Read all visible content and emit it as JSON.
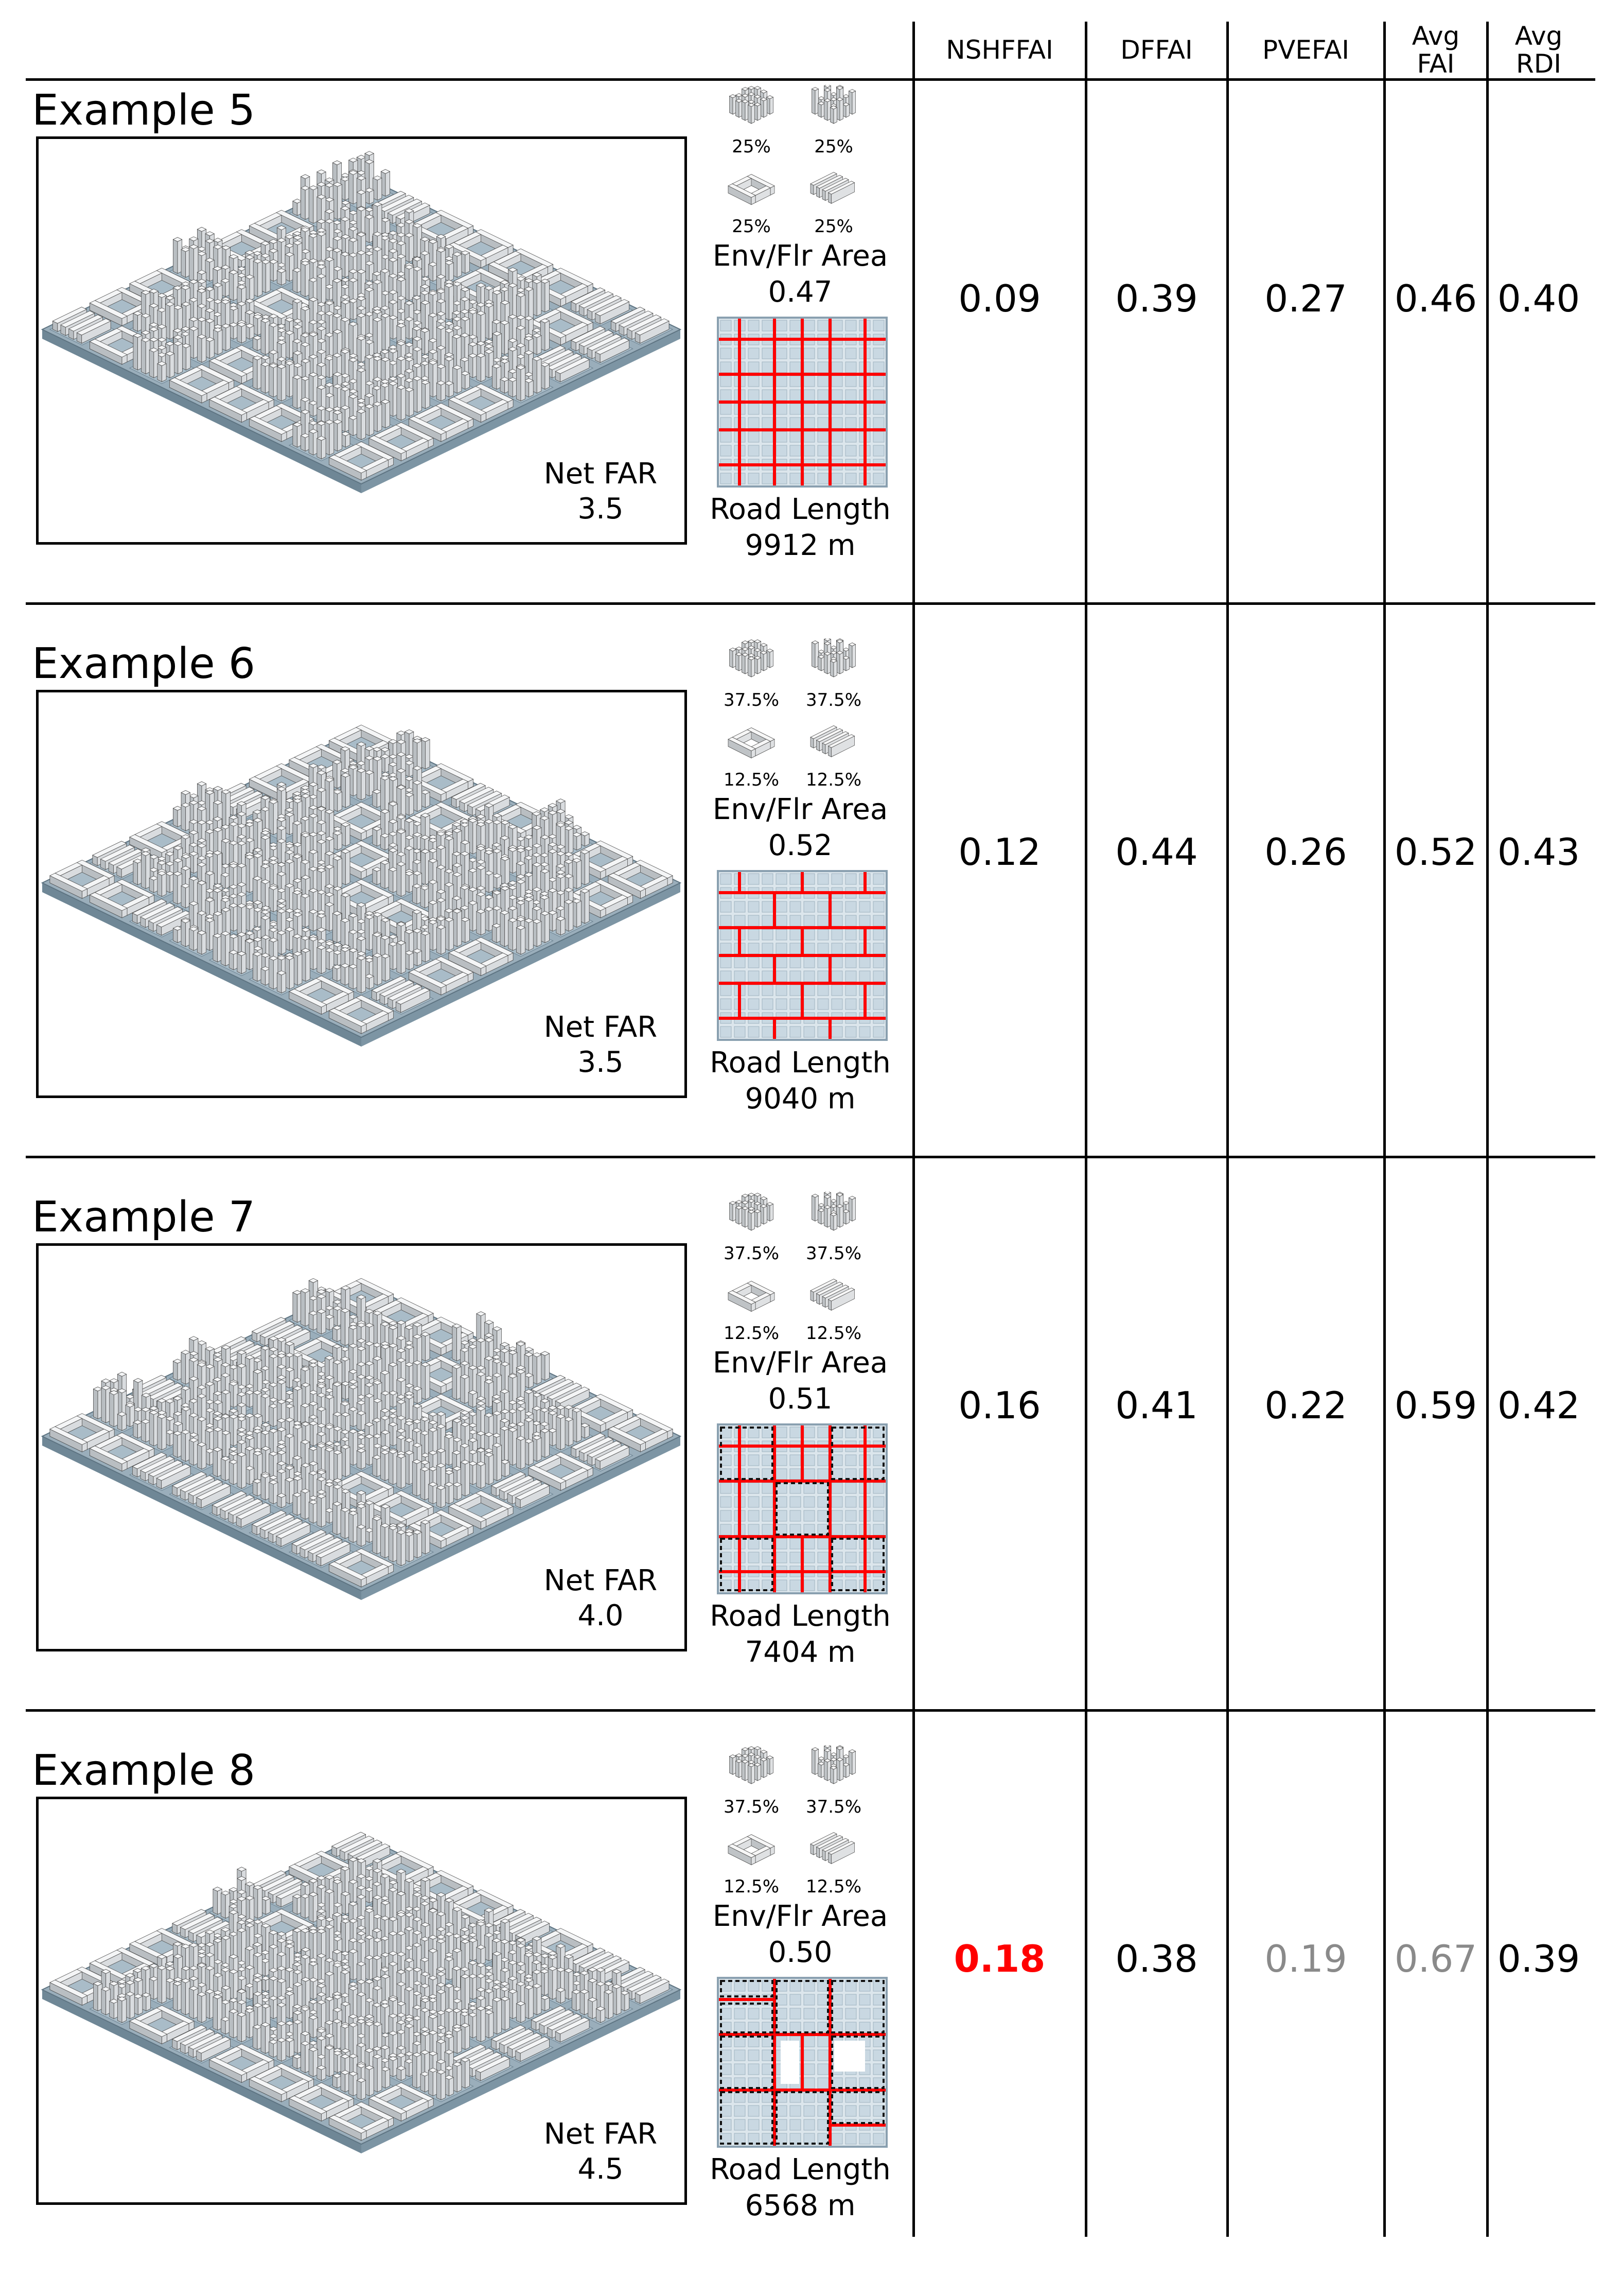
{
  "headers": [
    "NSHFFAI",
    "DFFAI",
    "PVEFAI",
    [
      "Avg",
      "FAI"
    ],
    [
      "Avg",
      "RDI"
    ]
  ],
  "labels": {
    "env": "Env/Flr Area",
    "road": "Road Length",
    "far": "Net FAR"
  },
  "colors": {
    "highlight": "#ff0000",
    "muted": "#8a8a8a",
    "road": "#ff0000",
    "ground": "#9aaebb",
    "block": "#c9d8e2"
  },
  "icons": [
    "tower-cluster-icon",
    "mixed-tower-icon",
    "courtyard-block-icon",
    "slab-rows-icon"
  ],
  "rows": [
    {
      "title": "Example 5",
      "far": "3.5",
      "pcts": [
        "25%",
        "25%",
        "25%",
        "25%"
      ],
      "env_value": "0.47",
      "road_value": "9912 m",
      "map_style": "grid",
      "metrics": [
        "0.09",
        "0.39",
        "0.27",
        "0.46",
        "0.40"
      ],
      "metric_styles": [
        "normal",
        "normal",
        "normal",
        "normal",
        "normal"
      ]
    },
    {
      "title": "Example 6",
      "far": "3.5",
      "pcts": [
        "37.5%",
        "37.5%",
        "12.5%",
        "12.5%"
      ],
      "env_value": "0.52",
      "road_value": "9040 m",
      "map_style": "brick",
      "metrics": [
        "0.12",
        "0.44",
        "0.26",
        "0.52",
        "0.43"
      ],
      "metric_styles": [
        "normal",
        "normal",
        "normal",
        "normal",
        "normal"
      ]
    },
    {
      "title": "Example 7",
      "far": "4.0",
      "pcts": [
        "37.5%",
        "37.5%",
        "12.5%",
        "12.5%"
      ],
      "env_value": "0.51",
      "road_value": "7404 m",
      "map_style": "dashed",
      "metrics": [
        "0.16",
        "0.41",
        "0.22",
        "0.59",
        "0.42"
      ],
      "metric_styles": [
        "normal",
        "normal",
        "normal",
        "normal",
        "normal"
      ]
    },
    {
      "title": "Example 8",
      "far": "4.5",
      "pcts": [
        "37.5%",
        "37.5%",
        "12.5%",
        "12.5%"
      ],
      "env_value": "0.50",
      "road_value": "6568 m",
      "map_style": "irregular",
      "metrics": [
        "0.18",
        "0.38",
        "0.19",
        "0.67",
        "0.39"
      ],
      "metric_styles": [
        "highlight",
        "normal",
        "muted",
        "muted",
        "normal"
      ]
    }
  ]
}
